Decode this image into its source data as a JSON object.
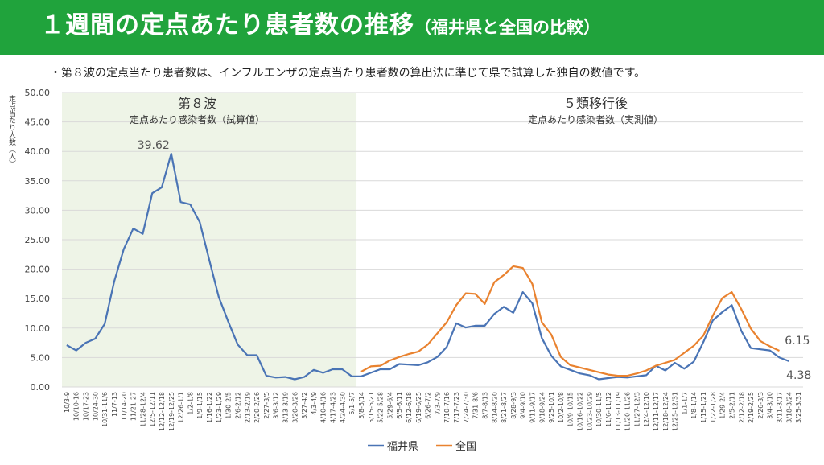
{
  "header": {
    "title": "１週間の定点あたり患者数の推移",
    "subtitle": "（福井県と全国の比較）",
    "note": "・第８波の定点当たり患者数は、インフルエンザの定点当たり患者数の算出法に準じて県で試算した独自の数値です。"
  },
  "colors": {
    "banner": "#20a33c",
    "fukui": "#4a74b5",
    "zenkoku": "#e9822f",
    "shade": "#eef4e7"
  },
  "chart_data": {
    "type": "line",
    "ylabel": "定点当たり人数（人）",
    "ylim": [
      0,
      50
    ],
    "yticks": [
      "0.00",
      "5.00",
      "10.00",
      "15.00",
      "20.00",
      "25.00",
      "30.00",
      "35.00",
      "40.00",
      "45.00",
      "50.00"
    ],
    "sections": [
      {
        "title": "第８波",
        "subtitle": "定点あたり感染者数（試算値）"
      },
      {
        "title": "５類移行後",
        "subtitle": "定点あたり感染者数（実測値）"
      }
    ],
    "annotations": {
      "peak": "39.62",
      "zenkoku_last": "6.15",
      "fukui_last": "4.38"
    },
    "categories": [
      "10/3-9",
      "10/10-16",
      "10/17-23",
      "10/24-30",
      "10/31-11/6",
      "11/7-13",
      "11/14-20",
      "11/21-27",
      "11/28-12/4",
      "12/5-12/11",
      "12/12-12/18",
      "12/19-12/25",
      "12/26-1/1",
      "1/2-1/8",
      "1/9-1/15",
      "1/16-1/22",
      "1/23-1/29",
      "1/30-2/5",
      "2/6-2/12",
      "2/13-2/19",
      "2/20-2/26",
      "2/27-3/5",
      "3/6-3/12",
      "3/13-3/19",
      "3/20-3/26",
      "3/27-4/2",
      "4/3-4/9",
      "4/10-4/16",
      "4/17-4/23",
      "4/24-4/30",
      "5/1-5/7",
      "5/8-5/14",
      "5/15-5/21",
      "5/22-5/28",
      "5/29-6/4",
      "6/5-6/11",
      "6/12-6/18",
      "6/19-6/25",
      "6/26-7/2",
      "7/3-7/9",
      "7/10-7/16",
      "7/17-7/23",
      "7/24-7/30",
      "7/31-8/6",
      "8/7-8/13",
      "8/14-8/20",
      "8/21-8/27",
      "8/28-9/3",
      "9/4-9/10",
      "9/11-9/17",
      "9/18-9/24",
      "9/25-10/1",
      "10/2-10/8",
      "10/9-10/15",
      "10/16-10/22",
      "10/23-10/29",
      "10/30-11/5",
      "11/6-11/12",
      "11/13-11/19",
      "11/20-11/26",
      "11/27-12/3",
      "12/4-12/10",
      "12/11-12/17",
      "12/18-12/24",
      "12/25-12/31",
      "1/1-1/7",
      "1/8-1/14",
      "1/15-1/21",
      "1/22-1/28",
      "1/29-2/4",
      "2/5-2/11",
      "2/12-2/18",
      "2/19-2/25",
      "2/26-3/3",
      "3/4-3/10",
      "3/11-3/17",
      "3/18-3/24",
      "3/25-3/31"
    ],
    "series": [
      {
        "name": "福井県",
        "values": [
          7.1,
          6.2,
          7.5,
          8.2,
          10.7,
          17.9,
          23.4,
          26.9,
          26.0,
          32.9,
          33.9,
          39.62,
          31.4,
          31.0,
          28.0,
          21.6,
          15.3,
          11.1,
          7.2,
          5.4,
          5.4,
          1.9,
          1.6,
          1.7,
          1.3,
          1.7,
          2.9,
          2.4,
          3.0,
          3.0,
          1.8,
          1.8,
          2.4,
          3.0,
          3.0,
          3.9,
          3.8,
          3.7,
          4.2,
          5.1,
          6.8,
          10.8,
          10.1,
          10.4,
          10.4,
          12.4,
          13.6,
          12.6,
          16.1,
          14.2,
          8.3,
          5.3,
          3.5,
          2.9,
          2.3,
          2.0,
          1.3,
          1.5,
          1.7,
          1.6,
          1.8,
          2.0,
          3.6,
          2.8,
          4.1,
          3.1,
          4.3,
          7.6,
          11.3,
          12.7,
          13.9,
          9.5,
          6.6,
          6.4,
          6.2,
          5.0,
          4.38,
          null
        ]
      },
      {
        "name": "全国",
        "values": [
          null,
          null,
          null,
          null,
          null,
          null,
          null,
          null,
          null,
          null,
          null,
          null,
          null,
          null,
          null,
          null,
          null,
          null,
          null,
          null,
          null,
          null,
          null,
          null,
          null,
          null,
          null,
          null,
          null,
          null,
          null,
          2.6,
          3.5,
          3.6,
          4.5,
          5.1,
          5.6,
          6.0,
          7.2,
          9.1,
          11.0,
          13.9,
          15.9,
          15.8,
          14.1,
          17.8,
          19.0,
          20.5,
          20.2,
          17.5,
          11.0,
          8.9,
          5.1,
          3.7,
          3.3,
          2.9,
          2.5,
          2.1,
          1.9,
          1.9,
          2.3,
          2.8,
          3.6,
          4.1,
          4.6,
          5.8,
          7.0,
          8.7,
          12.1,
          15.1,
          16.1,
          13.2,
          9.9,
          7.8,
          6.9,
          6.15,
          null,
          null
        ]
      }
    ]
  }
}
